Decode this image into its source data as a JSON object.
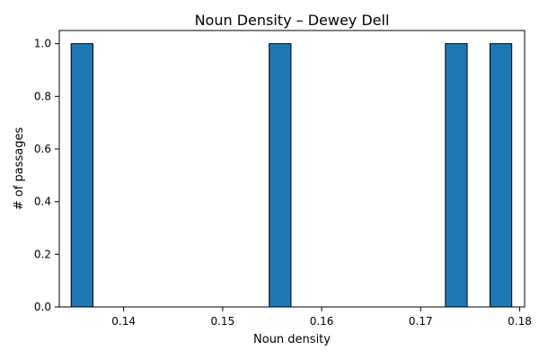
{
  "chart_data": {
    "type": "bar",
    "title": "Noun Density – Dewey Dell",
    "xlabel": "Noun density",
    "ylabel": "# of passages",
    "xlim": [
      0.1335,
      0.1805
    ],
    "ylim": [
      0.0,
      1.05
    ],
    "xticks": [
      0.14,
      0.15,
      0.16,
      0.17,
      0.18
    ],
    "xtick_labels": [
      "0.14",
      "0.15",
      "0.16",
      "0.17",
      "0.18"
    ],
    "yticks": [
      0.0,
      0.2,
      0.4,
      0.6,
      0.8,
      1.0
    ],
    "ytick_labels": [
      "0.0",
      "0.2",
      "0.4",
      "0.6",
      "0.8",
      "1.0"
    ],
    "grid": false,
    "legend": "none",
    "bar_color": "#1f77b4",
    "bar_edge_color": "#000000",
    "bins": [
      {
        "start": 0.1347,
        "end": 0.1369,
        "count": 1
      },
      {
        "start": 0.1547,
        "end": 0.1569,
        "count": 1
      },
      {
        "start": 0.1725,
        "end": 0.1747,
        "count": 1
      },
      {
        "start": 0.177,
        "end": 0.1792,
        "count": 1
      }
    ]
  }
}
